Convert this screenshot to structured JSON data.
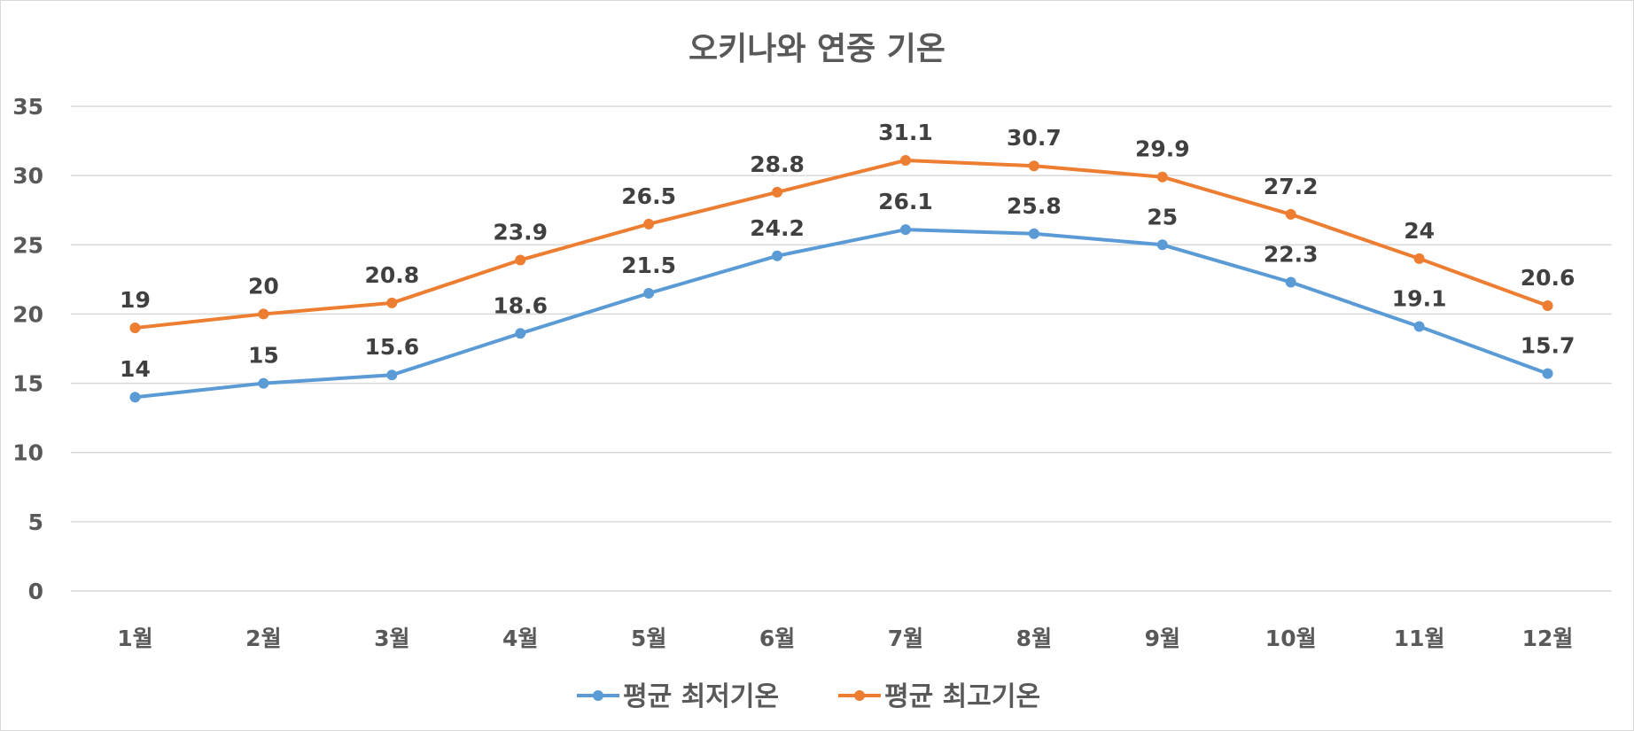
{
  "chart_data": {
    "type": "line",
    "title": "오키나와 연중 기온",
    "categories": [
      "1월",
      "2월",
      "3월",
      "4월",
      "5월",
      "6월",
      "7월",
      "8월",
      "9월",
      "10월",
      "11월",
      "12월"
    ],
    "series": [
      {
        "name": "평균 최저기온",
        "color": "#5B9BD5",
        "values": [
          14,
          15,
          15.6,
          18.6,
          21.5,
          24.2,
          26.1,
          25.8,
          25,
          22.3,
          19.1,
          15.7
        ]
      },
      {
        "name": "평균 최고기온",
        "color": "#ED7D31",
        "values": [
          19,
          20,
          20.8,
          23.9,
          26.5,
          28.8,
          31.1,
          30.7,
          29.9,
          27.2,
          24,
          20.6
        ]
      }
    ],
    "ylim": [
      0,
      35
    ],
    "yticks": [
      0,
      5,
      10,
      15,
      20,
      25,
      30,
      35
    ],
    "grid": true,
    "data_labels": true,
    "legend_position": "bottom"
  }
}
